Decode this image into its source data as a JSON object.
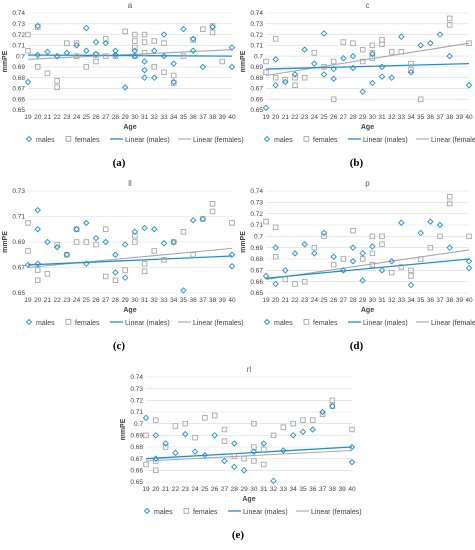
{
  "colors": {
    "males": "#1f8fd0",
    "females": "#a6a6a6",
    "linear_males": "#1f8fd0",
    "linear_females": "#a6a6a6",
    "grid": "#d9d9d9"
  },
  "legend": {
    "males": "males",
    "females": "females",
    "linear_males": "Linear (males)",
    "linear_females": "Linear (females)"
  },
  "chart_data": [
    {
      "type": "scatter",
      "panel_label": "(a)",
      "title": "a",
      "xlabel": "Age",
      "ylabel": "mmPE",
      "x_ticks": [
        19,
        20,
        21,
        22,
        23,
        24,
        25,
        26,
        27,
        28,
        29,
        30,
        31,
        32,
        33,
        34,
        35,
        36,
        37,
        38,
        39,
        40
      ],
      "ylim": [
        0.65,
        0.74
      ],
      "y_ticks": [
        "0.65",
        "0.66",
        "0.67",
        "0.68",
        "0.69",
        "0.7",
        "0.71",
        "0.72",
        "0.73",
        "0.74"
      ],
      "series": [
        {
          "name": "males",
          "x": [
            19,
            20,
            20,
            21,
            22,
            23,
            24,
            25,
            25,
            26,
            26,
            27,
            28,
            28,
            29,
            30,
            30,
            31,
            31,
            31,
            32,
            32,
            33,
            33,
            34,
            34,
            35,
            36,
            36,
            37,
            38,
            40,
            40
          ],
          "y": [
            0.676,
            0.701,
            0.728,
            0.704,
            0.7,
            0.703,
            0.71,
            0.726,
            0.705,
            0.713,
            0.702,
            0.712,
            0.705,
            0.701,
            0.671,
            0.705,
            0.7,
            0.695,
            0.687,
            0.68,
            0.705,
            0.68,
            0.72,
            0.7,
            0.693,
            0.676,
            0.725,
            0.705,
            0.716,
            0.69,
            0.727,
            0.708,
            0.69
          ]
        },
        {
          "name": "females",
          "x": [
            19,
            19,
            20,
            20,
            21,
            22,
            22,
            23,
            24,
            24,
            25,
            26,
            26,
            27,
            27,
            28,
            29,
            30,
            30,
            30,
            30,
            31,
            31,
            31,
            32,
            32,
            33,
            33,
            34,
            34,
            35,
            36,
            37,
            38,
            38,
            39
          ],
          "y": [
            0.72,
            0.705,
            0.727,
            0.69,
            0.684,
            0.677,
            0.671,
            0.712,
            0.712,
            0.7,
            0.69,
            0.701,
            0.695,
            0.716,
            0.7,
            0.7,
            0.723,
            0.72,
            0.714,
            0.708,
            0.7,
            0.72,
            0.713,
            0.703,
            0.714,
            0.69,
            0.712,
            0.685,
            0.682,
            0.675,
            0.7,
            0.715,
            0.725,
            0.728,
            0.722,
            0.695
          ]
        }
      ],
      "trend": {
        "males": [
          0.701,
          0.7
        ],
        "females": [
          0.697,
          0.706
        ]
      }
    },
    {
      "type": "scatter",
      "panel_label": "(b)",
      "title": "c",
      "xlabel": "Age",
      "ylabel": "mmPE",
      "x_ticks": [
        19,
        20,
        21,
        22,
        23,
        24,
        25,
        26,
        27,
        28,
        29,
        30,
        31,
        32,
        33,
        34,
        35,
        36,
        37,
        38,
        39,
        40
      ],
      "ylim": [
        0.65,
        0.74
      ],
      "y_ticks": [
        "0.65",
        "0.66",
        "0.67",
        "0.68",
        "0.69",
        "0.7",
        "0.71",
        "0.72",
        "0.73",
        "0.74"
      ],
      "series": [
        {
          "name": "males",
          "x": [
            19,
            20,
            20,
            21,
            22,
            23,
            24,
            25,
            25,
            26,
            26,
            27,
            28,
            28,
            29,
            30,
            30,
            31,
            31,
            32,
            33,
            34,
            35,
            36,
            37,
            38,
            40
          ],
          "y": [
            0.652,
            0.697,
            0.673,
            0.676,
            0.683,
            0.706,
            0.693,
            0.721,
            0.683,
            0.688,
            0.679,
            0.698,
            0.689,
            0.7,
            0.667,
            0.702,
            0.675,
            0.69,
            0.681,
            0.68,
            0.718,
            0.685,
            0.71,
            0.712,
            0.72,
            0.7,
            0.673
          ]
        },
        {
          "name": "females",
          "x": [
            19,
            19,
            20,
            20,
            21,
            22,
            22,
            23,
            24,
            25,
            26,
            26,
            27,
            28,
            29,
            29,
            30,
            30,
            30,
            31,
            31,
            32,
            33,
            34,
            34,
            35,
            38,
            38,
            40
          ],
          "y": [
            0.695,
            0.685,
            0.716,
            0.68,
            0.678,
            0.68,
            0.673,
            0.68,
            0.703,
            0.69,
            0.695,
            0.66,
            0.713,
            0.712,
            0.706,
            0.695,
            0.71,
            0.703,
            0.698,
            0.715,
            0.711,
            0.704,
            0.704,
            0.693,
            0.687,
            0.66,
            0.735,
            0.729,
            0.712
          ]
        }
      ],
      "trend": {
        "males": [
          0.688,
          0.693
        ],
        "females": [
          0.682,
          0.712
        ]
      }
    },
    {
      "type": "scatter",
      "panel_label": "(c)",
      "title": "ll",
      "xlabel": "Age",
      "ylabel": "mmPE",
      "x_ticks": [
        19,
        20,
        21,
        22,
        23,
        24,
        25,
        26,
        27,
        28,
        29,
        30,
        31,
        32,
        33,
        34,
        35,
        36,
        37,
        38,
        39,
        40
      ],
      "ylim": [
        0.65,
        0.73
      ],
      "y_ticks": [
        "0.65",
        "0.67",
        "0.69",
        "0.71",
        "0.73"
      ],
      "series": [
        {
          "name": "males",
          "x": [
            19,
            20,
            20,
            20,
            21,
            22,
            23,
            24,
            25,
            25,
            26,
            27,
            28,
            28,
            29,
            29,
            30,
            31,
            32,
            33,
            34,
            35,
            36,
            37,
            40,
            40
          ],
          "y": [
            0.672,
            0.715,
            0.7,
            0.673,
            0.69,
            0.686,
            0.68,
            0.7,
            0.705,
            0.673,
            0.693,
            0.69,
            0.68,
            0.666,
            0.662,
            0.688,
            0.698,
            0.701,
            0.7,
            0.689,
            0.69,
            0.652,
            0.707,
            0.708,
            0.68,
            0.671
          ]
        },
        {
          "name": "females",
          "x": [
            19,
            19,
            20,
            20,
            21,
            22,
            23,
            24,
            24,
            25,
            26,
            27,
            27,
            28,
            29,
            30,
            30,
            31,
            31,
            32,
            33,
            34,
            35,
            36,
            37,
            38,
            38,
            40
          ],
          "y": [
            0.705,
            0.683,
            0.668,
            0.66,
            0.665,
            0.688,
            0.68,
            0.69,
            0.7,
            0.69,
            0.688,
            0.7,
            0.663,
            0.66,
            0.668,
            0.695,
            0.69,
            0.673,
            0.667,
            0.683,
            0.676,
            0.69,
            0.698,
            0.68,
            0.708,
            0.72,
            0.714,
            0.705
          ]
        }
      ],
      "trend": {
        "males": [
          0.672,
          0.679
        ],
        "females": [
          0.67,
          0.685
        ]
      }
    },
    {
      "type": "scatter",
      "panel_label": "(d)",
      "title": "p",
      "xlabel": "Age",
      "ylabel": "mmPE",
      "x_ticks": [
        19,
        20,
        21,
        22,
        23,
        24,
        25,
        26,
        27,
        28,
        29,
        30,
        31,
        32,
        33,
        34,
        35,
        36,
        37,
        38,
        39,
        40
      ],
      "ylim": [
        0.65,
        0.74
      ],
      "y_ticks": [
        "0.65",
        "0.66",
        "0.67",
        "0.68",
        "0.69",
        "0.7",
        "0.71",
        "0.72",
        "0.73",
        "0.74"
      ],
      "series": [
        {
          "name": "males",
          "x": [
            19,
            20,
            20,
            21,
            22,
            23,
            24,
            25,
            26,
            27,
            28,
            28,
            29,
            29,
            30,
            31,
            32,
            33,
            34,
            35,
            36,
            37,
            38,
            40,
            40
          ],
          "y": [
            0.665,
            0.69,
            0.658,
            0.67,
            0.685,
            0.693,
            0.685,
            0.703,
            0.682,
            0.67,
            0.69,
            0.678,
            0.661,
            0.685,
            0.691,
            0.67,
            0.678,
            0.712,
            0.657,
            0.703,
            0.713,
            0.71,
            0.69,
            0.678,
            0.672
          ]
        },
        {
          "name": "females",
          "x": [
            19,
            20,
            20,
            21,
            22,
            23,
            24,
            25,
            26,
            27,
            28,
            29,
            30,
            30,
            30,
            31,
            31,
            32,
            33,
            34,
            34,
            35,
            36,
            37,
            38,
            38,
            40
          ],
          "y": [
            0.713,
            0.708,
            0.682,
            0.662,
            0.658,
            0.66,
            0.69,
            0.7,
            0.675,
            0.68,
            0.705,
            0.68,
            0.7,
            0.685,
            0.675,
            0.7,
            0.693,
            0.668,
            0.673,
            0.67,
            0.665,
            0.68,
            0.69,
            0.7,
            0.735,
            0.729,
            0.7
          ]
        }
      ],
      "trend": {
        "males": [
          0.663,
          0.68
        ],
        "females": [
          0.662,
          0.688
        ]
      }
    },
    {
      "type": "scatter",
      "panel_label": "(e)",
      "title": "rl",
      "xlabel": "Age",
      "ylabel": "mmPE",
      "x_ticks": [
        19,
        20,
        21,
        22,
        23,
        24,
        25,
        26,
        27,
        28,
        29,
        30,
        31,
        32,
        33,
        34,
        35,
        36,
        37,
        38,
        39,
        40
      ],
      "ylim": [
        0.65,
        0.74
      ],
      "y_ticks": [
        "0.65",
        "0.66",
        "0.67",
        "0.68",
        "0.69",
        "0.7",
        "0.71",
        "0.72",
        "0.73",
        "0.74"
      ],
      "series": [
        {
          "name": "males",
          "x": [
            19,
            20,
            20,
            21,
            22,
            23,
            24,
            25,
            26,
            27,
            28,
            28,
            29,
            30,
            31,
            32,
            33,
            34,
            35,
            36,
            37,
            38,
            40,
            40
          ],
          "y": [
            0.705,
            0.69,
            0.67,
            0.683,
            0.675,
            0.691,
            0.676,
            0.673,
            0.69,
            0.668,
            0.683,
            0.663,
            0.66,
            0.676,
            0.683,
            0.651,
            0.677,
            0.69,
            0.693,
            0.695,
            0.71,
            0.715,
            0.68,
            0.667
          ]
        },
        {
          "name": "females",
          "x": [
            19,
            19,
            20,
            20,
            20,
            21,
            22,
            23,
            24,
            25,
            26,
            27,
            27,
            28,
            29,
            30,
            30,
            30,
            31,
            31,
            32,
            33,
            34,
            35,
            36,
            37,
            38,
            38,
            40
          ],
          "y": [
            0.69,
            0.665,
            0.703,
            0.668,
            0.66,
            0.68,
            0.698,
            0.7,
            0.688,
            0.705,
            0.707,
            0.695,
            0.685,
            0.672,
            0.67,
            0.7,
            0.68,
            0.668,
            0.678,
            0.665,
            0.69,
            0.697,
            0.7,
            0.703,
            0.703,
            0.708,
            0.72,
            0.715,
            0.695
          ]
        }
      ],
      "trend": {
        "males": [
          0.67,
          0.68
        ],
        "females": [
          0.668,
          0.677
        ]
      }
    }
  ]
}
